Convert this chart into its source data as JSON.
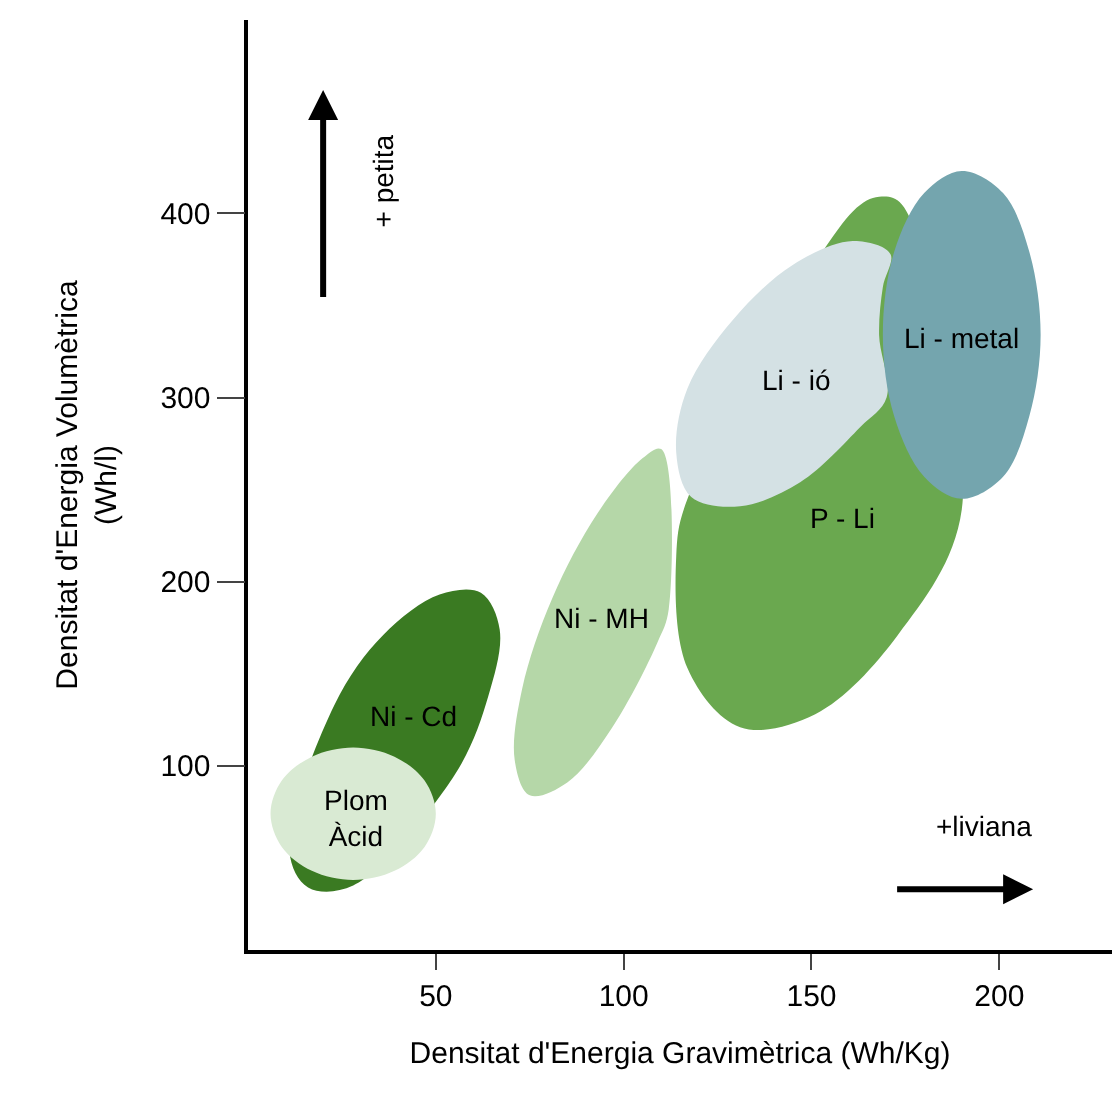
{
  "chart_data": {
    "type": "area",
    "xlabel": "Densitat d'Energia Gravimètrica (Wh/Kg)",
    "ylabel": "Densitat d'Energia Volumètrica\n(Wh/l)",
    "xlim": [
      0,
      230
    ],
    "ylim": [
      0,
      505
    ],
    "xticks": [
      50,
      100,
      150,
      200
    ],
    "yticks": [
      100,
      200,
      300,
      400
    ],
    "series": [
      {
        "color": "#b5d7a8",
        "x": [
          110,
          105,
          93,
          81,
          73,
          71,
          75,
          85,
          97,
          109,
          112,
          110
        ],
        "values": [
          272,
          267,
          237,
          191,
          142,
          103,
          84,
          91,
          121,
          167,
          185,
          272
        ]
      },
      {
        "color": "#3a7a22",
        "x": [
          62,
          51,
          36,
          23,
          11,
          16,
          28,
          55,
          64,
          67,
          62
        ],
        "values": [
          194,
          193,
          171,
          133,
          54,
          34,
          35,
          95,
          138,
          174,
          194
        ]
      },
      {
        "color": "#d9ead3",
        "x": [
          50,
          47,
          39,
          28,
          17,
          9,
          6,
          9,
          17,
          28,
          39,
          47,
          50
        ],
        "values": [
          74,
          92,
          105,
          110,
          105,
          92,
          74,
          56,
          43,
          38,
          43,
          56,
          74
        ]
      },
      {
        "color": "#6aa84f",
        "x": [
          174,
          168,
          161,
          117,
          114,
          117,
          131,
          151,
          173,
          190,
          174
        ],
        "values": [
          405,
          409,
          401,
          245,
          214,
          153,
          121,
          128,
          171,
          239,
          405
        ]
      },
      {
        "color": "#d4e1e4",
        "x": [
          171,
          161,
          145,
          129,
          117,
          114,
          118,
          131,
          147,
          163,
          170,
          168,
          169,
          171
        ],
        "values": [
          378,
          385,
          372,
          342,
          305,
          270,
          246,
          241,
          254,
          284,
          300,
          334,
          360,
          378
        ]
      },
      {
        "color": "#74a5ae",
        "x": [
          211,
          208,
          201,
          190,
          180,
          172,
          169,
          172,
          180,
          190,
          201,
          208,
          211
        ],
        "values": [
          334,
          379,
          411,
          423,
          411,
          379,
          334,
          290,
          257,
          245,
          257,
          290,
          334
        ]
      }
    ],
    "annotations": [
      "Ni - MH",
      "Ni - Cd",
      "Plom\nÀcid",
      "P - Li",
      "Li - ió",
      "Li - metal",
      "+ petita",
      "+liviana"
    ]
  }
}
